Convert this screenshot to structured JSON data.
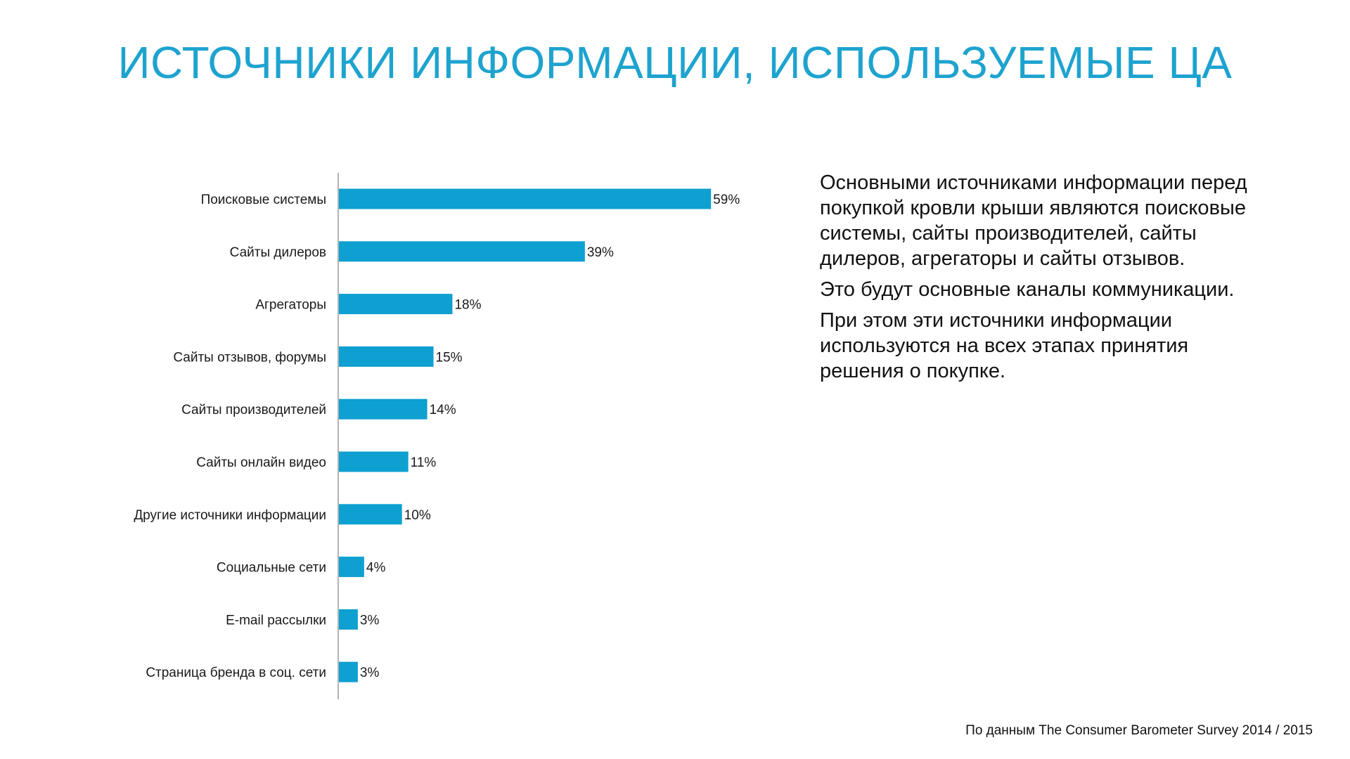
{
  "slide": {
    "title": "ИСТОЧНИКИ ИНФОРМАЦИИ, ИСПОЛЬЗУЕМЫЕ ЦА",
    "source": "По данным The Consumer Barometer Survey 2014 / 2015",
    "accent_color": "#1ea3cf"
  },
  "description": {
    "paragraphs": [
      "Основными источниками информации перед покупкой кровли крыши являются поисковые системы, сайты производителей, сайты дилеров, агрегаторы и сайты отзывов.",
      "Это будут основные каналы коммуникации.",
      "При этом эти источники информации используются на всех этапах принятия решения о покупке."
    ]
  },
  "chart_data": {
    "type": "bar",
    "orientation": "horizontal",
    "categories": [
      "Поисковые системы",
      "Сайты дилеров",
      "Агрегаторы",
      "Сайты отзывов, форумы",
      "Сайты производителей",
      "Сайты онлайн видео",
      "Другие источники информации",
      "Социальные сети",
      "E-mail рассылки",
      "Страница бренда в соц. сети"
    ],
    "values": [
      59,
      39,
      18,
      15,
      14,
      11,
      10,
      4,
      3,
      3
    ],
    "value_labels": [
      "59%",
      "39%",
      "18%",
      "15%",
      "14%",
      "11%",
      "10%",
      "4%",
      "3%",
      "3%"
    ],
    "unit": "%",
    "xlim": [
      0,
      100
    ],
    "bar_color": "#0ea0d0",
    "axis_color": "#9a9a9a",
    "grid": false,
    "legend": false
  }
}
